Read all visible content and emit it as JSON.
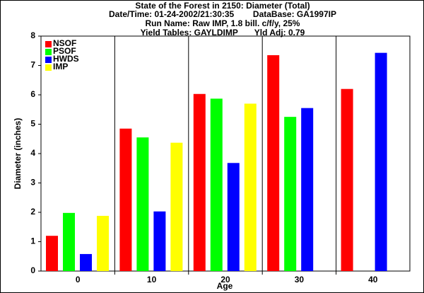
{
  "chart_data": {
    "type": "bar",
    "title": "State of the Forest in 2150: Diameter (Total)",
    "subtitle": [
      "Date/Time: 01-24-2002/21:30:35        DataBase: GA1997IP",
      "Run Name: Raw IMP, 1.8 bill. c/f/y, 25%",
      "Yield Tables: GAYLDIMP       Yld Adj: 0.79"
    ],
    "x_label": "Age",
    "y_label": "Diameter (inches)",
    "categories": [
      "0",
      "10",
      "20",
      "30",
      "40"
    ],
    "series": [
      {
        "name": "NSOF",
        "color": "#ff0000",
        "values": [
          1.2,
          4.85,
          6.03,
          7.35,
          6.2
        ]
      },
      {
        "name": "PSOF",
        "color": "#00ff00",
        "values": [
          1.98,
          4.55,
          5.87,
          5.25,
          null
        ]
      },
      {
        "name": "HWDS",
        "color": "#0000ff",
        "values": [
          0.58,
          2.03,
          3.68,
          5.55,
          7.43
        ]
      },
      {
        "name": "IMP",
        "color": "#ffff00",
        "values": [
          1.88,
          4.37,
          5.7,
          null,
          null
        ]
      }
    ],
    "ylim": [
      0,
      8
    ],
    "yticks": [
      0,
      1,
      2,
      3,
      4,
      5,
      6,
      7,
      8
    ],
    "legend": "top-left"
  }
}
